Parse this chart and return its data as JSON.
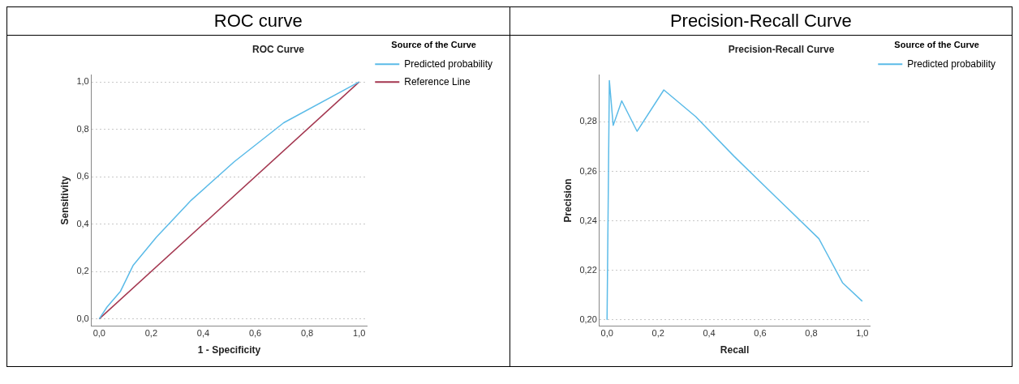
{
  "chart_data": [
    {
      "type": "line",
      "title": "ROC curve",
      "subtitle": "ROC Curve",
      "xlabel": "1 - Specificity",
      "ylabel": "Sensitivity",
      "legend_title": "Source of the Curve",
      "legend": "top right",
      "grid": "y",
      "marker": "none",
      "line_style": "solid",
      "xlim": [
        -0.03,
        1.03
      ],
      "ylim": [
        -0.03,
        1.03
      ],
      "xticks": [
        {
          "value": 0,
          "label": "0,0"
        },
        {
          "value": 0.2,
          "label": "0,2"
        },
        {
          "value": 0.4,
          "label": "0,4"
        },
        {
          "value": 0.6,
          "label": "0,6"
        },
        {
          "value": 0.8,
          "label": "0,8"
        },
        {
          "value": 1,
          "label": "1,0"
        }
      ],
      "yticks": [
        {
          "value": 0,
          "label": "0,0"
        },
        {
          "value": 0.2,
          "label": "0,2"
        },
        {
          "value": 0.4,
          "label": "0,4"
        },
        {
          "value": 0.6,
          "label": "0,6"
        },
        {
          "value": 0.8,
          "label": "0,8"
        },
        {
          "value": 1,
          "label": "1,0"
        }
      ],
      "series": [
        {
          "name": "Predicted probability",
          "color": "#5bbbe8",
          "x": [
            0,
            0.03,
            0.082,
            0.13,
            0.22,
            0.354,
            0.519,
            0.71,
            1
          ],
          "values": [
            0,
            0.05,
            0.117,
            0.225,
            0.345,
            0.501,
            0.663,
            0.828,
            1
          ]
        },
        {
          "name": "Reference Line",
          "color": "#a3364f",
          "x": [
            0,
            1
          ],
          "values": [
            0,
            1
          ]
        }
      ]
    },
    {
      "type": "line",
      "title": "Precision-Recall Curve",
      "subtitle": "Precision-Recall Curve",
      "xlabel": "Recall",
      "ylabel": "Precision",
      "legend_title": "Source of the Curve",
      "legend": "top right",
      "grid": "y",
      "marker": "none",
      "line_style": "solid",
      "xlim": [
        -0.03,
        1.03
      ],
      "ylim": [
        0.1975,
        0.299
      ],
      "xticks": [
        {
          "value": 0,
          "label": "0,0"
        },
        {
          "value": 0.2,
          "label": "0,2"
        },
        {
          "value": 0.4,
          "label": "0,4"
        },
        {
          "value": 0.6,
          "label": "0,6"
        },
        {
          "value": 0.8,
          "label": "0,8"
        },
        {
          "value": 1,
          "label": "1,0"
        }
      ],
      "yticks": [
        {
          "value": 0.2,
          "label": "0,20"
        },
        {
          "value": 0.22,
          "label": "0,22"
        },
        {
          "value": 0.24,
          "label": "0,24"
        },
        {
          "value": 0.26,
          "label": "0,26"
        },
        {
          "value": 0.28,
          "label": "0,28"
        }
      ],
      "series": [
        {
          "name": "Predicted probability",
          "color": "#5bbbe8",
          "x": [
            0,
            0.009,
            0.024,
            0.0575,
            0.1175,
            0.2225,
            0.3475,
            0.4975,
            0.66,
            0.83,
            0.9225,
            1
          ],
          "values": [
            0.2,
            0.2967,
            0.2786,
            0.2885,
            0.2762,
            0.2929,
            0.2821,
            0.2661,
            0.2498,
            0.2328,
            0.215,
            0.2075
          ]
        }
      ]
    }
  ]
}
